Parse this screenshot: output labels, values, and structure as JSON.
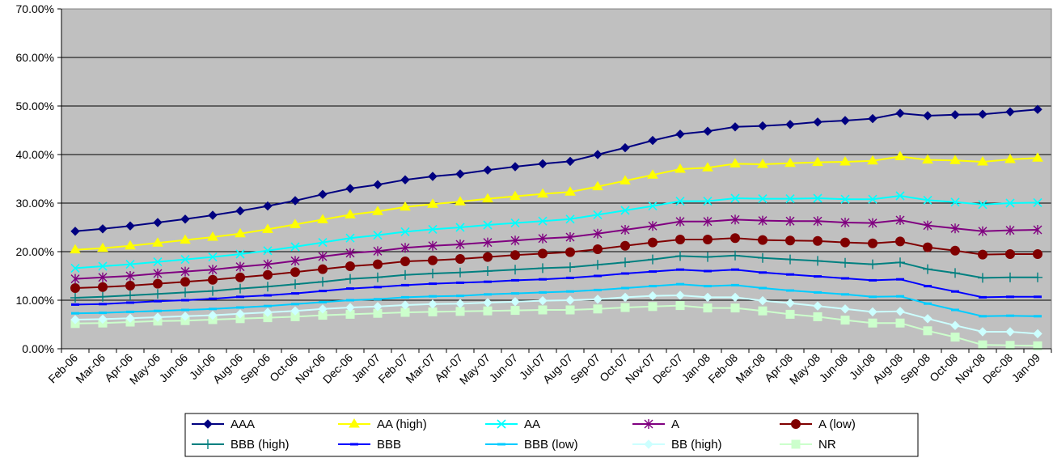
{
  "chart_data": {
    "type": "line",
    "title": "",
    "xlabel": "",
    "ylabel": "",
    "ylim": [
      0,
      70
    ],
    "yticks": [
      "0.00%",
      "10.00%",
      "20.00%",
      "30.00%",
      "40.00%",
      "50.00%",
      "60.00%",
      "70.00%"
    ],
    "grid": true,
    "plot_background": "#c0c0c0",
    "legend_position": "bottom",
    "categories": [
      "Feb-06",
      "Mar-06",
      "Apr-06",
      "May-06",
      "Jun-06",
      "Jul-06",
      "Aug-06",
      "Sep-06",
      "Oct-06",
      "Nov-06",
      "Dec-06",
      "Jan-07",
      "Feb-07",
      "Mar-07",
      "Apr-07",
      "May-07",
      "Jun-07",
      "Jul-07",
      "Aug-07",
      "Sep-07",
      "Oct-07",
      "Nov-07",
      "Dec-07",
      "Jan-08",
      "Feb-08",
      "Mar-08",
      "Apr-08",
      "May-08",
      "Jun-08",
      "Jul-08",
      "Aug-08",
      "Sep-08",
      "Oct-08",
      "Nov-08",
      "Dec-08",
      "Jan-09"
    ],
    "series": [
      {
        "name": "AAA",
        "color": "#000080",
        "marker": "diamond",
        "values": [
          24.2,
          24.7,
          25.3,
          26.0,
          26.7,
          27.5,
          28.4,
          29.4,
          30.5,
          31.8,
          33.0,
          33.8,
          34.8,
          35.5,
          36.0,
          36.8,
          37.5,
          38.1,
          38.6,
          40.0,
          41.4,
          42.9,
          44.2,
          44.8,
          45.7,
          45.9,
          46.2,
          46.7,
          47.0,
          47.4,
          48.5,
          48.0,
          48.2,
          48.3,
          48.8,
          49.3
        ]
      },
      {
        "name": "AA (high)",
        "color": "#ffff00",
        "marker": "triangle",
        "values": [
          20.4,
          20.7,
          21.2,
          21.8,
          22.4,
          23.0,
          23.7,
          24.6,
          25.6,
          26.6,
          27.6,
          28.3,
          29.2,
          29.8,
          30.3,
          30.9,
          31.4,
          31.9,
          32.3,
          33.4,
          34.6,
          35.8,
          37.0,
          37.3,
          38.1,
          38.0,
          38.2,
          38.4,
          38.5,
          38.7,
          39.6,
          38.9,
          38.8,
          38.5,
          39.0,
          39.3
        ]
      },
      {
        "name": "AA",
        "color": "#00ffff",
        "marker": "x",
        "values": [
          16.6,
          17.0,
          17.4,
          17.9,
          18.4,
          18.9,
          19.5,
          20.2,
          21.0,
          21.9,
          22.8,
          23.4,
          24.1,
          24.6,
          25.0,
          25.5,
          25.9,
          26.3,
          26.7,
          27.6,
          28.5,
          29.4,
          30.4,
          30.4,
          31.0,
          30.9,
          30.9,
          31.0,
          30.8,
          30.8,
          31.5,
          30.6,
          30.2,
          29.7,
          30.0,
          30.1
        ]
      },
      {
        "name": "A",
        "color": "#800080",
        "marker": "star",
        "values": [
          14.4,
          14.7,
          15.0,
          15.5,
          15.9,
          16.3,
          16.9,
          17.4,
          18.1,
          19.0,
          19.7,
          20.1,
          20.8,
          21.2,
          21.5,
          21.9,
          22.3,
          22.7,
          23.0,
          23.7,
          24.5,
          25.3,
          26.2,
          26.2,
          26.6,
          26.4,
          26.3,
          26.3,
          26.0,
          25.9,
          26.5,
          25.4,
          24.8,
          24.2,
          24.4,
          24.5
        ]
      },
      {
        "name": "A (low)",
        "color": "#800000",
        "marker": "circle",
        "values": [
          12.5,
          12.7,
          13.0,
          13.4,
          13.8,
          14.2,
          14.7,
          15.2,
          15.8,
          16.4,
          17.0,
          17.4,
          18.0,
          18.2,
          18.5,
          18.9,
          19.3,
          19.6,
          19.9,
          20.5,
          21.2,
          21.9,
          22.5,
          22.5,
          22.8,
          22.4,
          22.3,
          22.2,
          21.9,
          21.7,
          22.1,
          20.9,
          20.2,
          19.4,
          19.5,
          19.5
        ]
      },
      {
        "name": "BBB (high)",
        "color": "#008080",
        "marker": "plus",
        "values": [
          10.5,
          10.7,
          11.0,
          11.3,
          11.6,
          11.9,
          12.4,
          12.8,
          13.3,
          13.8,
          14.4,
          14.7,
          15.2,
          15.5,
          15.7,
          16.0,
          16.3,
          16.6,
          16.8,
          17.3,
          17.8,
          18.4,
          19.1,
          18.9,
          19.2,
          18.7,
          18.4,
          18.1,
          17.7,
          17.4,
          17.8,
          16.4,
          15.6,
          14.6,
          14.7,
          14.7
        ]
      },
      {
        "name": "BBB",
        "color": "#0000ff",
        "marker": "dash",
        "values": [
          9.1,
          9.2,
          9.5,
          9.8,
          10.0,
          10.3,
          10.7,
          11.0,
          11.4,
          11.9,
          12.4,
          12.7,
          13.1,
          13.4,
          13.6,
          13.8,
          14.1,
          14.3,
          14.6,
          15.0,
          15.5,
          15.9,
          16.3,
          16.0,
          16.3,
          15.7,
          15.3,
          14.9,
          14.5,
          14.1,
          14.3,
          12.9,
          11.8,
          10.6,
          10.7,
          10.7
        ]
      },
      {
        "name": "BBB (low)",
        "color": "#00ccff",
        "marker": "dash",
        "values": [
          7.3,
          7.4,
          7.6,
          7.8,
          8.0,
          8.2,
          8.5,
          8.8,
          9.2,
          9.6,
          10.0,
          10.2,
          10.6,
          10.8,
          10.9,
          11.2,
          11.4,
          11.6,
          11.8,
          12.1,
          12.5,
          12.9,
          13.3,
          12.9,
          13.1,
          12.5,
          12.0,
          11.6,
          11.2,
          10.7,
          10.8,
          9.3,
          8.0,
          6.7,
          6.8,
          6.7
        ]
      },
      {
        "name": "BB (high)",
        "color": "#ccffff",
        "marker": "diamond",
        "values": [
          6.0,
          6.1,
          6.3,
          6.5,
          6.7,
          6.9,
          7.2,
          7.5,
          7.8,
          8.2,
          8.5,
          8.7,
          9.0,
          9.2,
          9.3,
          9.5,
          9.7,
          9.9,
          10.0,
          10.2,
          10.6,
          10.9,
          11.0,
          10.6,
          10.6,
          9.9,
          9.4,
          8.8,
          8.2,
          7.6,
          7.7,
          6.2,
          4.8,
          3.5,
          3.5,
          3.1
        ]
      },
      {
        "name": "NR",
        "color": "#ccffcc",
        "marker": "square",
        "values": [
          5.2,
          5.3,
          5.5,
          5.7,
          5.8,
          6.0,
          6.2,
          6.4,
          6.6,
          6.9,
          7.1,
          7.3,
          7.5,
          7.6,
          7.7,
          7.8,
          7.9,
          8.0,
          8.0,
          8.2,
          8.5,
          8.7,
          8.9,
          8.4,
          8.4,
          7.8,
          7.1,
          6.6,
          5.9,
          5.3,
          5.3,
          3.7,
          2.4,
          0.8,
          0.7,
          0.6
        ]
      }
    ]
  }
}
